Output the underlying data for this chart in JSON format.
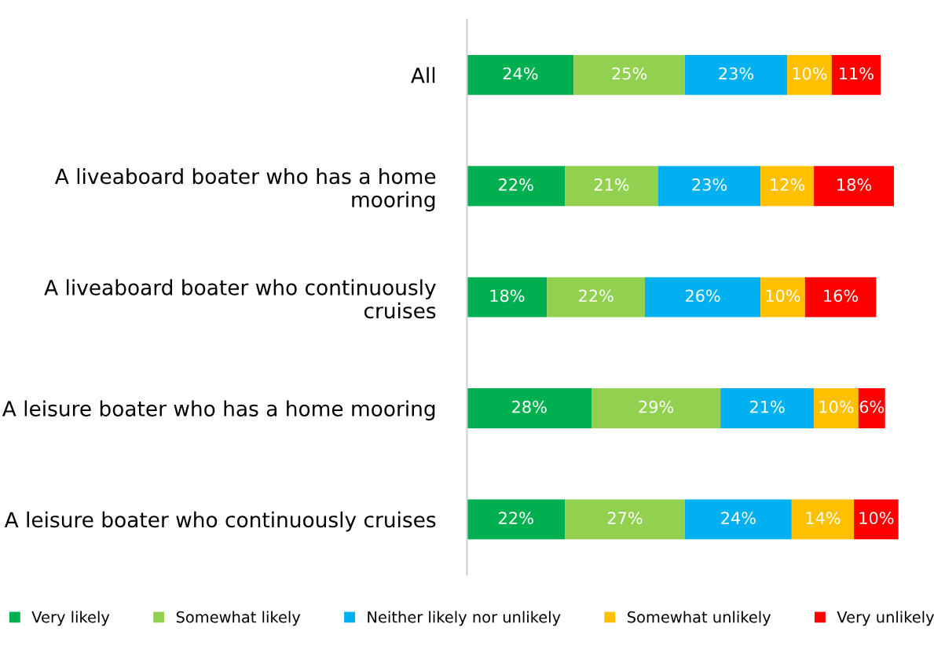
{
  "chart_data": {
    "type": "bar",
    "orientation": "horizontal",
    "stacked": true,
    "categories": [
      "All",
      "A liveaboard boater who has a home mooring",
      "A liveaboard boater who continuously cruises",
      "A leisure boater who has a home mooring",
      "A leisure boater who continuously cruises"
    ],
    "series": [
      {
        "name": "Very likely",
        "color": "#00b050",
        "values": [
          24,
          22,
          18,
          28,
          22
        ],
        "value_labels": [
          "24%",
          "22%",
          "18%",
          "28%",
          "22%"
        ]
      },
      {
        "name": "Somewhat likely",
        "color": "#92d050",
        "values": [
          25,
          21,
          22,
          29,
          27
        ],
        "value_labels": [
          "25%",
          "21%",
          "22%",
          "29%",
          "27%"
        ]
      },
      {
        "name": "Neither likely nor unlikely",
        "color": "#00b0f0",
        "values": [
          23,
          23,
          26,
          21,
          24
        ],
        "value_labels": [
          "23%",
          "23%",
          "26%",
          "21%",
          "24%"
        ]
      },
      {
        "name": "Somewhat unlikely",
        "color": "#ffc000",
        "values": [
          10,
          12,
          10,
          10,
          14
        ],
        "value_labels": [
          "10%",
          "12%",
          "10%",
          "10%",
          "14%"
        ]
      },
      {
        "name": "Very unlikely",
        "color": "#ff0000",
        "values": [
          11,
          18,
          16,
          6,
          10
        ],
        "value_labels": [
          "11%",
          "18%",
          "16%",
          "6%",
          "10%"
        ]
      }
    ],
    "legend": "bottom",
    "grid": false,
    "tick_labels": "y"
  }
}
